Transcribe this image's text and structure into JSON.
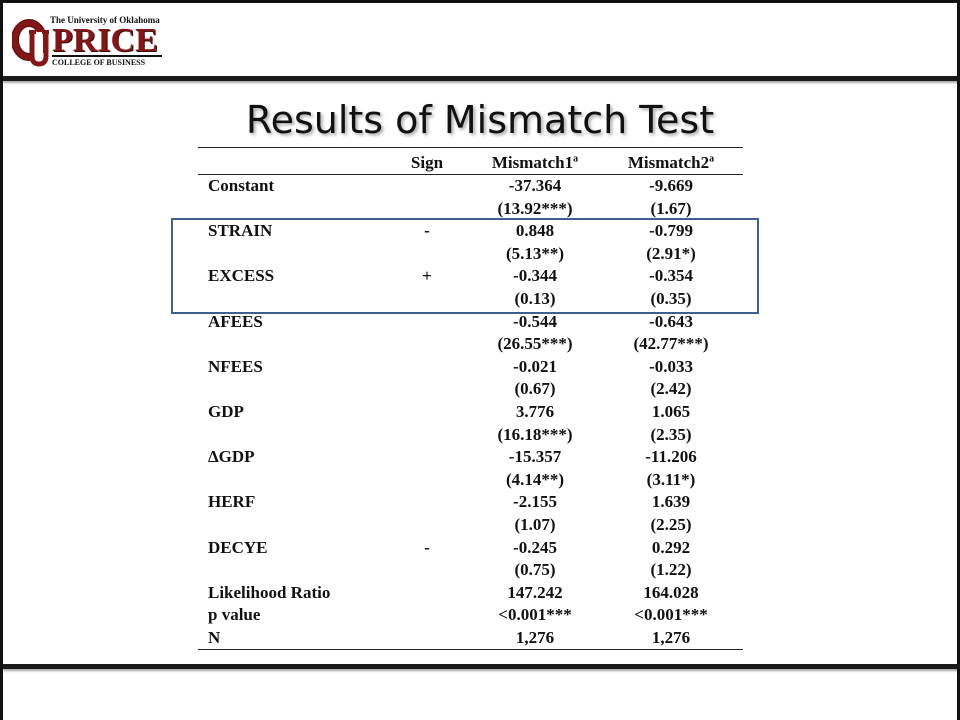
{
  "logo": {
    "university": "The University of Oklahoma",
    "name": "PRICE",
    "college": "COLLEGE OF BUSINESS",
    "brand_color": "#841617"
  },
  "slide": {
    "title": "Results of Mismatch Test"
  },
  "table": {
    "headers": [
      "",
      "Sign",
      "Mismatch1",
      "Mismatch2"
    ],
    "header_superscript": "a",
    "rows": [
      {
        "label": "Constant",
        "sign": "",
        "m1": "-37.364",
        "m2": "-9.669"
      },
      {
        "label": "",
        "sign": "",
        "m1": "(13.92***)",
        "m2": "(1.67)"
      },
      {
        "label": "STRAIN",
        "sign": "-",
        "m1": "0.848",
        "m2": "-0.799"
      },
      {
        "label": "",
        "sign": "",
        "m1": "(5.13**)",
        "m2": "(2.91*)"
      },
      {
        "label": "EXCESS",
        "sign": "+",
        "m1": "-0.344",
        "m2": "-0.354"
      },
      {
        "label": "",
        "sign": "",
        "m1": "(0.13)",
        "m2": "(0.35)"
      },
      {
        "label": "AFEES",
        "sign": "",
        "m1": "-0.544",
        "m2": "-0.643"
      },
      {
        "label": "",
        "sign": "",
        "m1": "(26.55***)",
        "m2": "(42.77***)"
      },
      {
        "label": "NFEES",
        "sign": "",
        "m1": "-0.021",
        "m2": "-0.033"
      },
      {
        "label": "",
        "sign": "",
        "m1": "(0.67)",
        "m2": "(2.42)"
      },
      {
        "label": "GDP",
        "sign": "",
        "m1": "3.776",
        "m2": "1.065"
      },
      {
        "label": "",
        "sign": "",
        "m1": "(16.18***)",
        "m2": "(2.35)"
      },
      {
        "label": "ΔGDP",
        "sign": "",
        "m1": "-15.357",
        "m2": "-11.206"
      },
      {
        "label": "",
        "sign": "",
        "m1": "(4.14**)",
        "m2": "(3.11*)"
      },
      {
        "label": "HERF",
        "sign": "",
        "m1": "-2.155",
        "m2": "1.639"
      },
      {
        "label": "",
        "sign": "",
        "m1": "(1.07)",
        "m2": "(2.25)"
      },
      {
        "label": "DECYE",
        "sign": "-",
        "m1": "-0.245",
        "m2": "0.292"
      },
      {
        "label": "",
        "sign": "",
        "m1": "(0.75)",
        "m2": "(1.22)"
      },
      {
        "label": "Likelihood Ratio",
        "sign": "",
        "m1": "147.242",
        "m2": "164.028"
      },
      {
        "label": "p value",
        "sign": "",
        "m1": "<0.001***",
        "m2": "<0.001***"
      },
      {
        "label": "N",
        "sign": "",
        "m1": "1,276",
        "m2": "1,276"
      }
    ]
  },
  "colors": {
    "highlight_border": "#3f5f8e"
  }
}
